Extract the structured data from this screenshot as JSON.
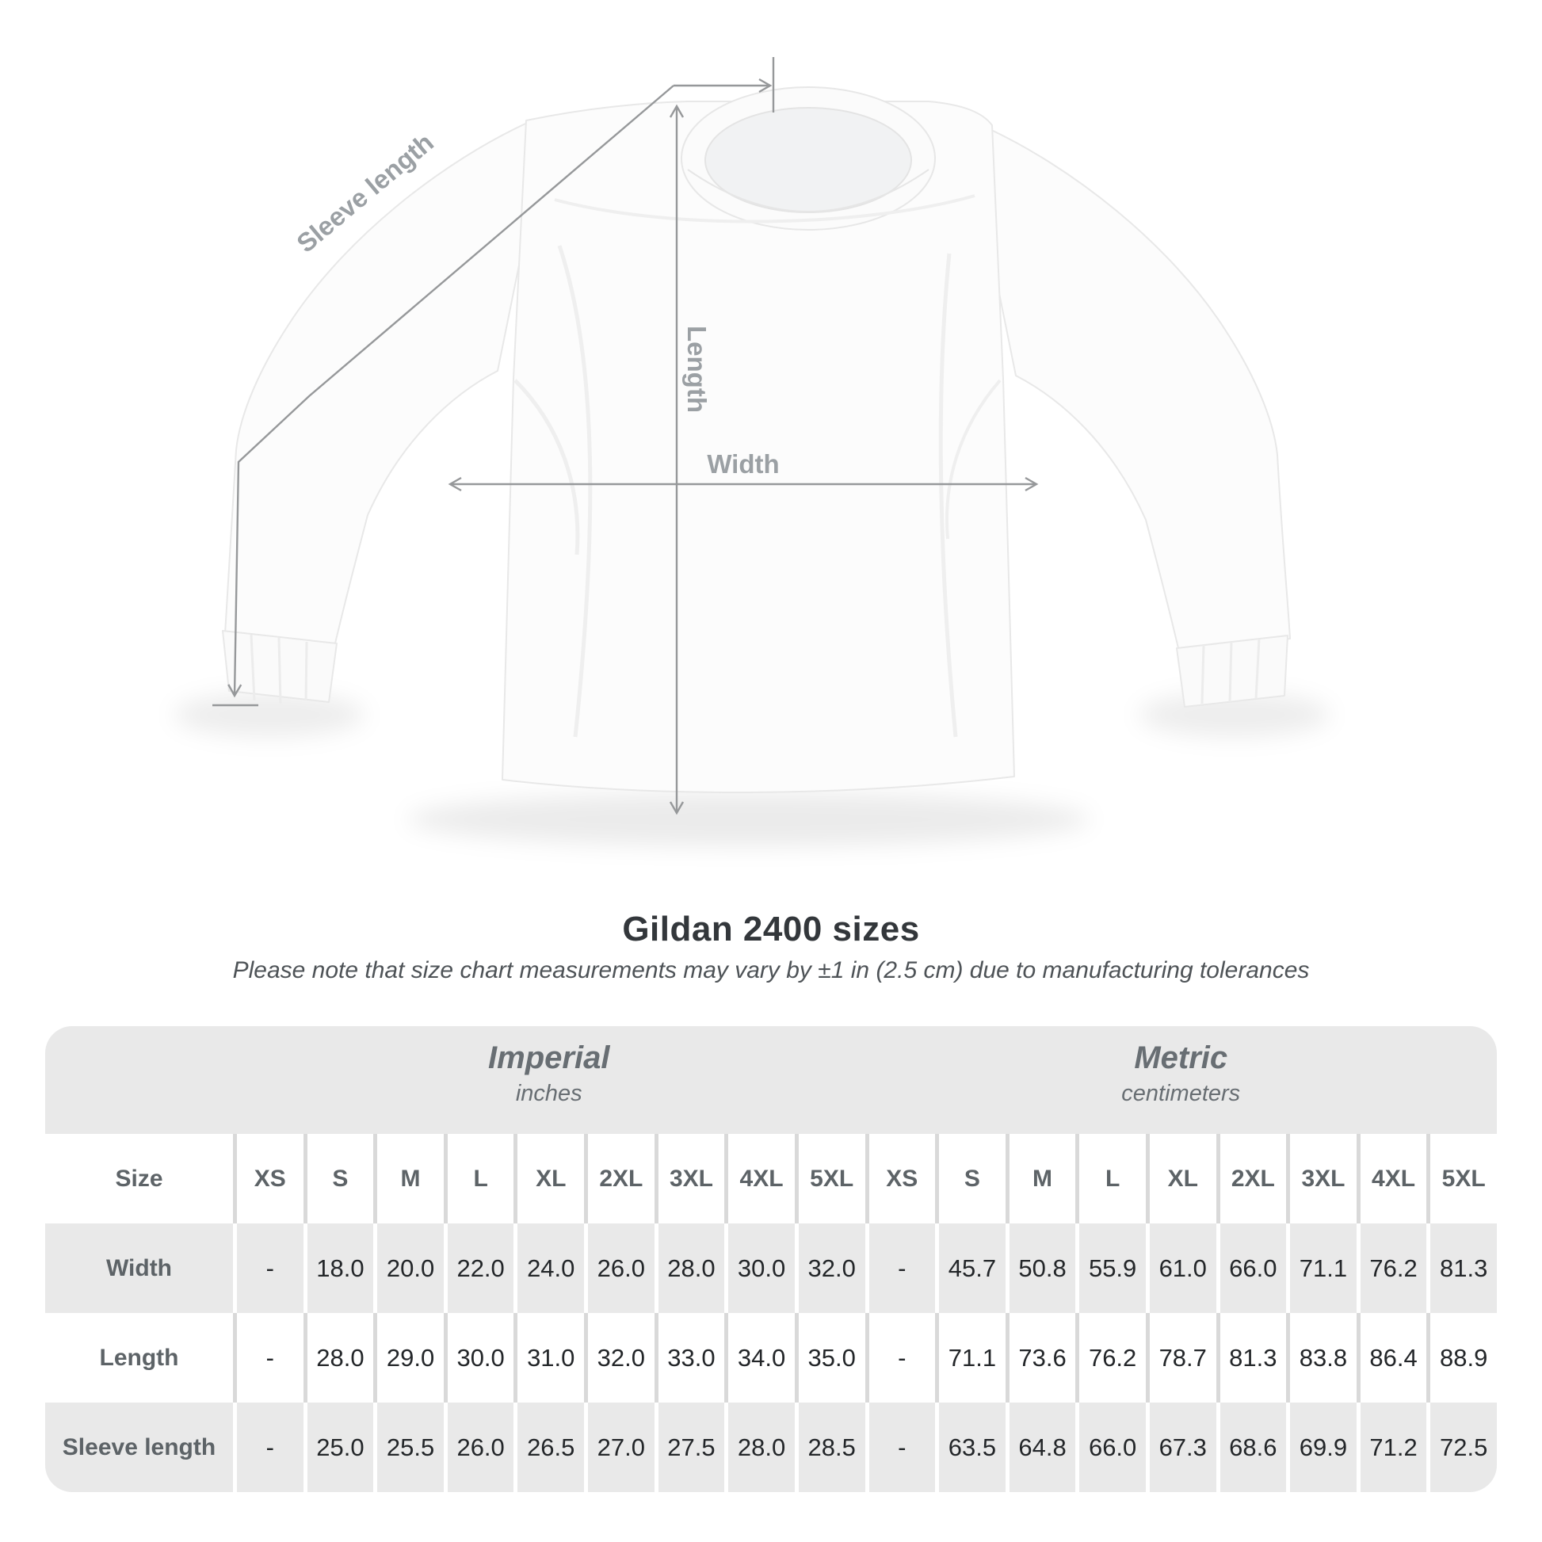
{
  "illustration": {
    "labels": {
      "sleeve": "Sleeve length",
      "length": "Length",
      "width": "Width"
    }
  },
  "title": "Gildan 2400 sizes",
  "subtitle": "Please note that size chart measurements may vary by ±1 in (2.5 cm) due to manufacturing tolerances",
  "table": {
    "size_header": "Size",
    "sizes": [
      "XS",
      "S",
      "M",
      "L",
      "XL",
      "2XL",
      "3XL",
      "4XL",
      "5XL"
    ],
    "unit_groups": [
      {
        "name": "Imperial",
        "unit": "inches"
      },
      {
        "name": "Metric",
        "unit": "centimeters"
      }
    ],
    "rows": [
      {
        "label": "Width",
        "imperial": [
          "-",
          "18.0",
          "20.0",
          "22.0",
          "24.0",
          "26.0",
          "28.0",
          "30.0",
          "32.0"
        ],
        "metric": [
          "-",
          "45.7",
          "50.8",
          "55.9",
          "61.0",
          "66.0",
          "71.1",
          "76.2",
          "81.3"
        ]
      },
      {
        "label": "Length",
        "imperial": [
          "-",
          "28.0",
          "29.0",
          "30.0",
          "31.0",
          "32.0",
          "33.0",
          "34.0",
          "35.0"
        ],
        "metric": [
          "-",
          "71.1",
          "73.6",
          "76.2",
          "78.7",
          "81.3",
          "83.8",
          "86.4",
          "88.9"
        ]
      },
      {
        "label": "Sleeve length",
        "imperial": [
          "-",
          "25.0",
          "25.5",
          "26.0",
          "26.5",
          "27.0",
          "27.5",
          "28.0",
          "28.5"
        ],
        "metric": [
          "-",
          "63.5",
          "64.8",
          "66.0",
          "67.3",
          "68.6",
          "69.9",
          "71.2",
          "72.5"
        ]
      }
    ]
  },
  "colors": {
    "background": "#ffffff",
    "table_gray": "#e9e9e9",
    "separator_gray": "#d9d9d9",
    "header_text": "#5d6367",
    "value_text": "#232629",
    "measure_line": "#96989a",
    "measure_label": "#9ba0a4",
    "title_text": "#33373b",
    "subtitle_text": "#4e5357"
  }
}
